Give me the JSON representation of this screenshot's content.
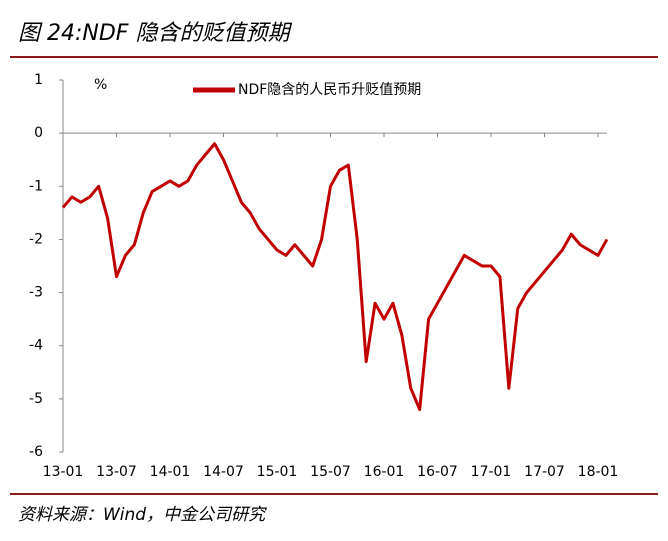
{
  "chart_data": {
    "type": "line",
    "title": "图 24:NDF 隐含的贬值预期",
    "unit_label": "%",
    "source": "资料来源：Wind，中金公司研究",
    "x": [
      "13-01",
      "13-02",
      "13-03",
      "13-04",
      "13-05",
      "13-06",
      "13-07",
      "13-08",
      "13-09",
      "13-10",
      "13-11",
      "13-12",
      "14-01",
      "14-02",
      "14-03",
      "14-04",
      "14-05",
      "14-06",
      "14-07",
      "14-08",
      "14-09",
      "14-10",
      "14-11",
      "14-12",
      "15-01",
      "15-02",
      "15-03",
      "15-04",
      "15-05",
      "15-06",
      "15-07",
      "15-08",
      "15-09",
      "15-10",
      "15-11",
      "15-12",
      "16-01",
      "16-02",
      "16-03",
      "16-04",
      "16-05",
      "16-06",
      "16-07",
      "16-08",
      "16-09",
      "16-10",
      "16-11",
      "16-12",
      "17-01",
      "17-02",
      "17-03",
      "17-04",
      "17-05",
      "17-06",
      "17-07",
      "17-08",
      "17-09",
      "17-10",
      "17-11",
      "17-12",
      "18-01",
      "18-02"
    ],
    "series": [
      {
        "name": "NDF隐含的人民币升贬值预期",
        "color": "#c00000",
        "values": [
          -1.4,
          -1.2,
          -1.3,
          -1.2,
          -1.0,
          -1.6,
          -2.7,
          -2.3,
          -2.1,
          -1.5,
          -1.1,
          -1.0,
          -0.9,
          -1.0,
          -0.9,
          -0.6,
          -0.4,
          -0.2,
          -0.5,
          -0.9,
          -1.3,
          -1.5,
          -1.8,
          -2.0,
          -2.2,
          -2.3,
          -2.1,
          -2.3,
          -2.5,
          -2.0,
          -1.0,
          -0.7,
          -0.6,
          -2.0,
          -4.3,
          -3.2,
          -3.5,
          -3.2,
          -3.8,
          -4.8,
          -5.2,
          -3.5,
          -3.2,
          -2.9,
          -2.6,
          -2.3,
          -2.4,
          -2.5,
          -2.5,
          -2.7,
          -4.8,
          -3.3,
          -3.0,
          -2.8,
          -2.6,
          -2.4,
          -2.2,
          -1.9,
          -2.1,
          -2.2,
          -2.3,
          -2.0
        ]
      }
    ],
    "ylim": [
      -6,
      1
    ],
    "yticks": [
      -6,
      -5,
      -4,
      -3,
      -2,
      -1,
      0,
      1
    ]
  }
}
